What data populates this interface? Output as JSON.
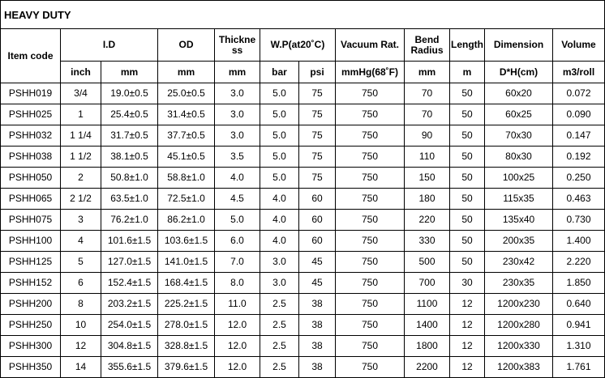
{
  "title": "HEAVY DUTY",
  "headers": {
    "item_code": "Item code",
    "id": "I.D",
    "od": "OD",
    "thickness": "Thickne ss",
    "wp": "W.P(at20˚C)",
    "vacuum": "Vacuum Rat.",
    "bend": "Bend Radius",
    "length": "Length",
    "dimension": "Dimension",
    "volume": "Volume"
  },
  "units": [
    "inch",
    "mm",
    "mm",
    "mm",
    "bar",
    "psi",
    "mmHg(68˚F)",
    "mm",
    "m",
    "D*H(cm)",
    "m3/roll"
  ],
  "rows": [
    [
      "PSHH019",
      "3/4",
      "19.0±0.5",
      "25.0±0.5",
      "3.0",
      "5.0",
      "75",
      "750",
      "70",
      "50",
      "60x20",
      "0.072"
    ],
    [
      "PSHH025",
      "1",
      "25.4±0.5",
      "31.4±0.5",
      "3.0",
      "5.0",
      "75",
      "750",
      "70",
      "50",
      "60x25",
      "0.090"
    ],
    [
      "PSHH032",
      "1 1/4",
      "31.7±0.5",
      "37.7±0.5",
      "3.0",
      "5.0",
      "75",
      "750",
      "90",
      "50",
      "70x30",
      "0.147"
    ],
    [
      "PSHH038",
      "1 1/2",
      "38.1±0.5",
      "45.1±0.5",
      "3.5",
      "5.0",
      "75",
      "750",
      "110",
      "50",
      "80x30",
      "0.192"
    ],
    [
      "PSHH050",
      "2",
      "50.8±1.0",
      "58.8±1.0",
      "4.0",
      "5.0",
      "75",
      "750",
      "150",
      "50",
      "100x25",
      "0.250"
    ],
    [
      "PSHH065",
      "2 1/2",
      "63.5±1.0",
      "72.5±1.0",
      "4.5",
      "4.0",
      "60",
      "750",
      "180",
      "50",
      "115x35",
      "0.463"
    ],
    [
      "PSHH075",
      "3",
      "76.2±1.0",
      "86.2±1.0",
      "5.0",
      "4.0",
      "60",
      "750",
      "220",
      "50",
      "135x40",
      "0.730"
    ],
    [
      "PSHH100",
      "4",
      "101.6±1.5",
      "103.6±1.5",
      "6.0",
      "4.0",
      "60",
      "750",
      "330",
      "50",
      "200x35",
      "1.400"
    ],
    [
      "PSHH125",
      "5",
      "127.0±1.5",
      "141.0±1.5",
      "7.0",
      "3.0",
      "45",
      "750",
      "500",
      "50",
      "230x42",
      "2.220"
    ],
    [
      "PSHH152",
      "6",
      "152.4±1.5",
      "168.4±1.5",
      "8.0",
      "3.0",
      "45",
      "750",
      "700",
      "30",
      "230x35",
      "1.850"
    ],
    [
      "PSHH200",
      "8",
      "203.2±1.5",
      "225.2±1.5",
      "11.0",
      "2.5",
      "38",
      "750",
      "1100",
      "12",
      "1200x230",
      "0.640"
    ],
    [
      "PSHH250",
      "10",
      "254.0±1.5",
      "278.0±1.5",
      "12.0",
      "2.5",
      "38",
      "750",
      "1400",
      "12",
      "1200x280",
      "0.941"
    ],
    [
      "PSHH300",
      "12",
      "304.8±1.5",
      "328.8±1.5",
      "12.0",
      "2.5",
      "38",
      "750",
      "1800",
      "12",
      "1200x330",
      "1.310"
    ],
    [
      "PSHH350",
      "14",
      "355.6±1.5",
      "379.6±1.5",
      "12.0",
      "2.5",
      "38",
      "750",
      "2200",
      "12",
      "1200x383",
      "1.761"
    ]
  ]
}
